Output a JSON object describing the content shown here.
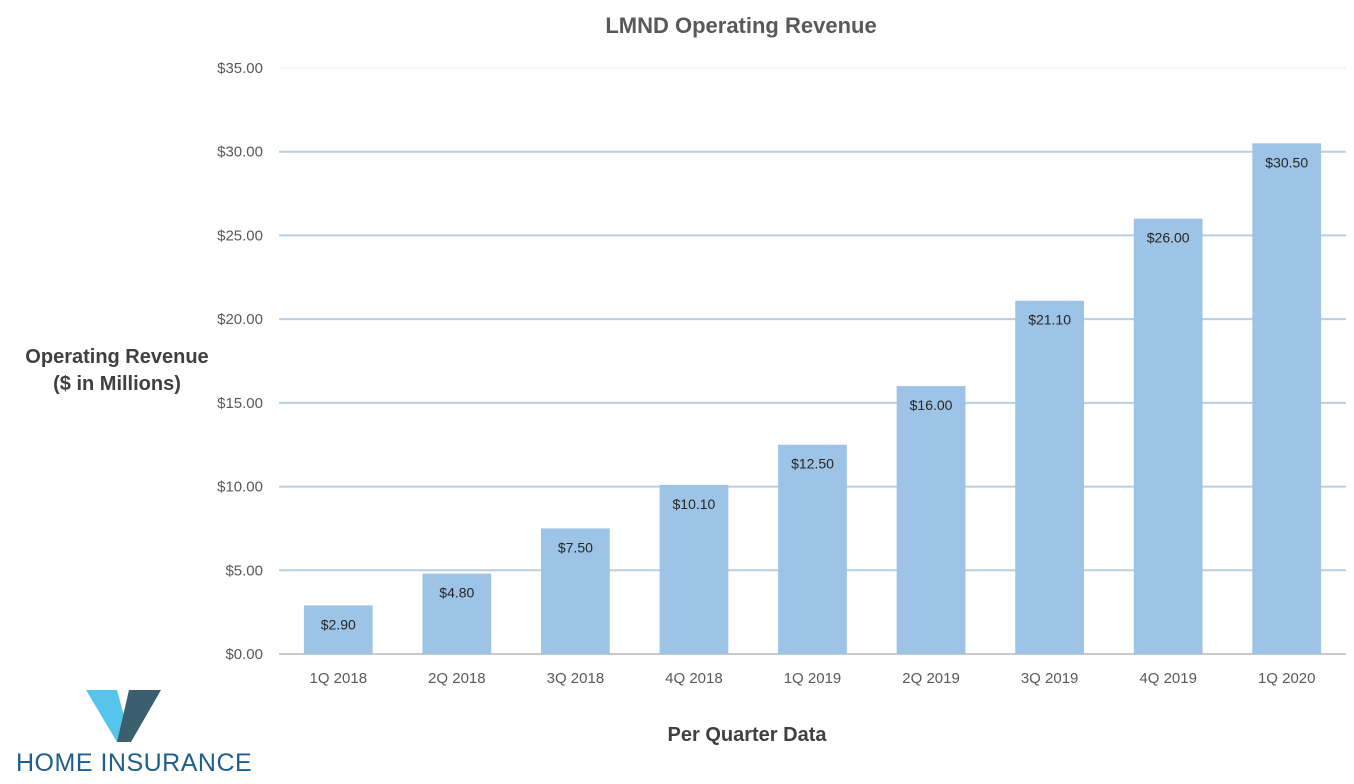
{
  "chart_data": {
    "type": "bar",
    "title": "LMND Operating Revenue",
    "ylabel_lines": [
      "Operating Revenue",
      "($ in Millions)"
    ],
    "xlabel": "Per Quarter Data",
    "categories": [
      "1Q 2018",
      "2Q 2018",
      "3Q 2018",
      "4Q 2018",
      "1Q 2019",
      "2Q 2019",
      "3Q 2019",
      "4Q 2019",
      "1Q 2020"
    ],
    "values": [
      2.9,
      4.8,
      7.5,
      10.1,
      12.5,
      16.0,
      21.1,
      26.0,
      30.5
    ],
    "data_labels": [
      "$2.90",
      "$4.80",
      "$7.50",
      "$10.10",
      "$12.50",
      "$16.00",
      "$21.10",
      "$26.00",
      "$30.50"
    ],
    "ylim": [
      0,
      35
    ],
    "y_ticks": [
      0,
      5,
      10,
      15,
      20,
      25,
      30,
      35
    ],
    "y_tick_labels": [
      "$0.00",
      "$5.00",
      "$10.00",
      "$15.00",
      "$20.00",
      "$25.00",
      "$30.00",
      "$35.00"
    ],
    "grid": true,
    "bar_color": "#9dc3e6",
    "grid_color": "#b7cfdf"
  },
  "logo": {
    "text": "HOME INSURANCE",
    "colors": {
      "light": "#56c5ec",
      "dark": "#3b5f6e",
      "text": "#1f5f8b"
    }
  }
}
